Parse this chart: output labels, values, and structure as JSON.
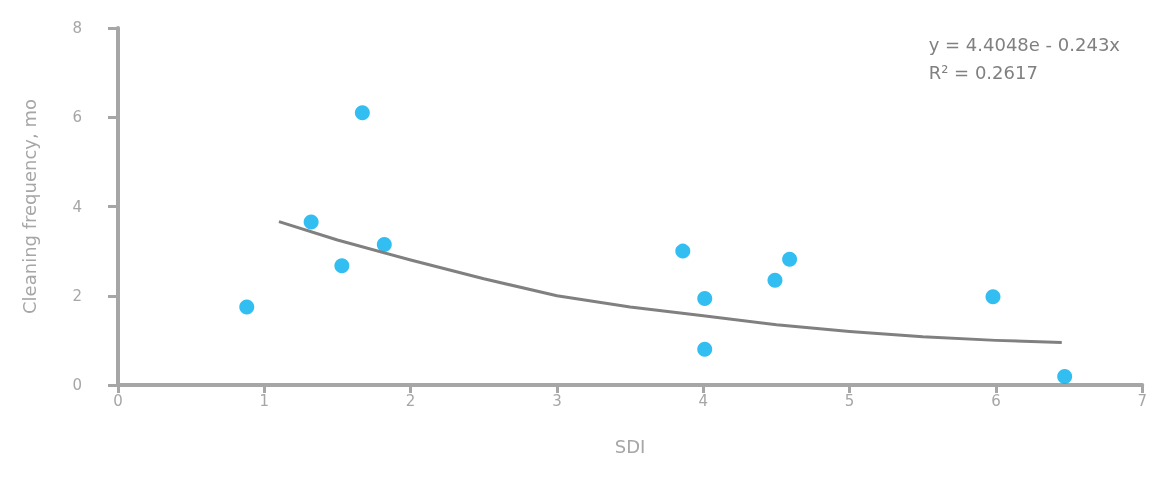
{
  "chart_data": {
    "type": "scatter",
    "xlabel": "SDI",
    "ylabel": "Cleaning frequency, mo",
    "xlim": [
      0,
      7
    ],
    "xticks": [
      0,
      1,
      2,
      3,
      4,
      5,
      6,
      7
    ],
    "ylim": [
      0,
      8
    ],
    "yticks": [
      0,
      2,
      4,
      6,
      8
    ],
    "grid": false,
    "marker": "circle",
    "annotations": [
      "y = 4.4048e - 0.243x",
      "R² = 0.2617"
    ],
    "series": [
      {
        "color": "#00aeef",
        "x": [
          0.88,
          1.32,
          1.53,
          1.67,
          1.82,
          3.86,
          4.01,
          4.01,
          4.49,
          4.59,
          5.98,
          6.47
        ],
        "values": [
          1.75,
          3.65,
          2.67,
          6.1,
          3.15,
          3.0,
          1.94,
          0.8,
          2.35,
          2.82,
          1.98,
          0.19
        ]
      },
      {
        "type": "line",
        "color": "#808080",
        "marker": "none",
        "x": [
          1.1,
          1.5,
          2,
          2.5,
          3,
          3.5,
          4,
          4.5,
          5,
          5.5,
          6,
          6.45
        ],
        "values": [
          3.66,
          3.25,
          2.8,
          2.38,
          2.0,
          1.75,
          1.55,
          1.35,
          1.2,
          1.08,
          1.0,
          0.95
        ]
      }
    ]
  }
}
